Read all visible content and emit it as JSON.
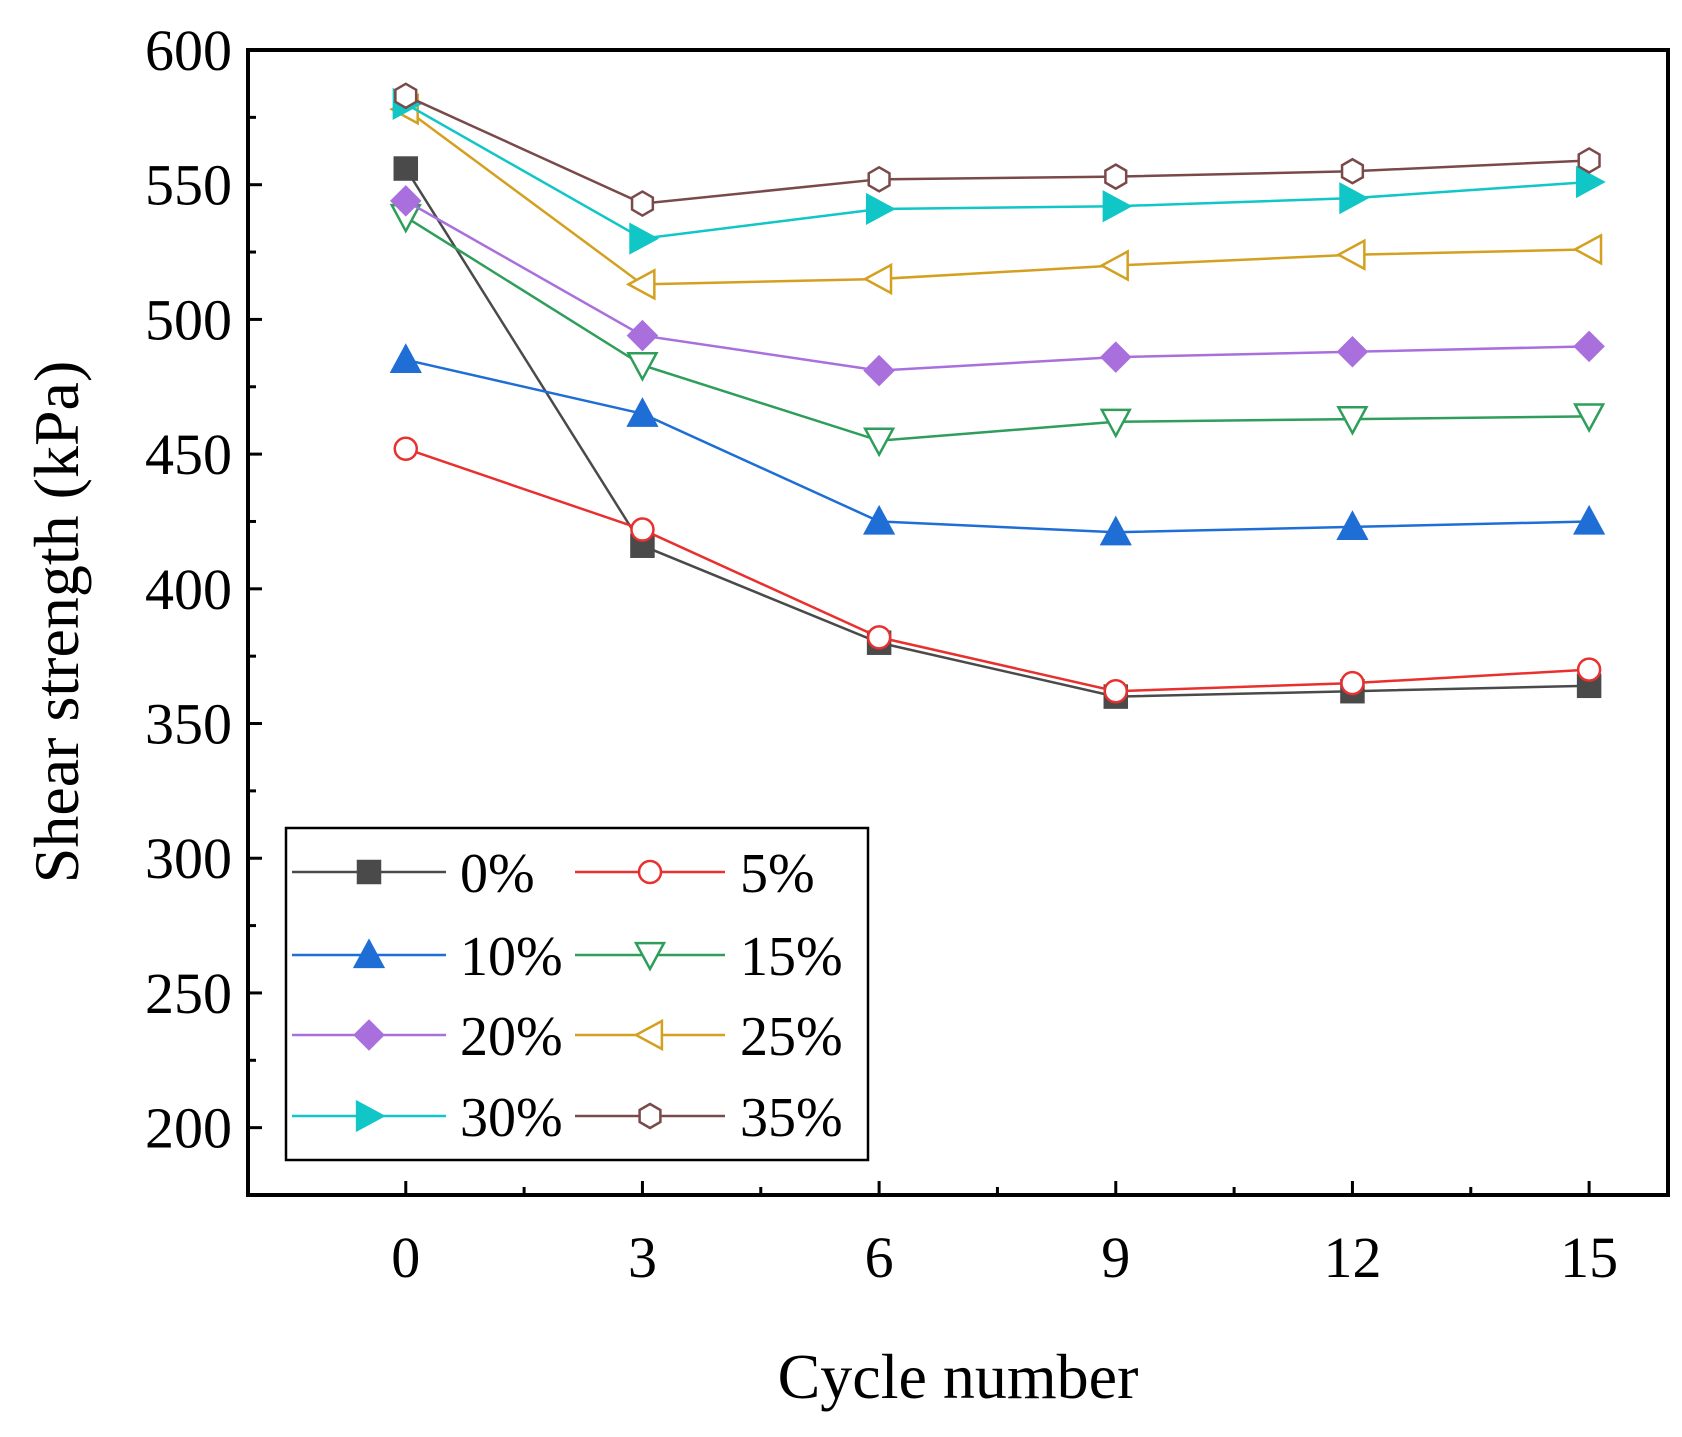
{
  "chart_data": {
    "type": "line",
    "title": "",
    "xlabel": "Cycle number",
    "ylabel": "Shear strength (kPa)",
    "x": [
      0,
      3,
      6,
      9,
      12,
      15
    ],
    "xticks": [
      "0",
      "3",
      "6",
      "9",
      "12",
      "15"
    ],
    "xlim": [
      -2,
      16
    ],
    "ylim": [
      175,
      600
    ],
    "yticks": [
      "200",
      "250",
      "300",
      "350",
      "400",
      "450",
      "500",
      "550",
      "600"
    ],
    "legend_position": "bottom-left",
    "series": [
      {
        "name": "0%",
        "color": "#4a4a4a",
        "marker": "square-filled",
        "values": [
          556,
          416,
          380,
          360,
          362,
          364
        ]
      },
      {
        "name": "5%",
        "color": "#e8302e",
        "marker": "circle-open",
        "values": [
          452,
          422,
          382,
          362,
          365,
          370
        ]
      },
      {
        "name": "10%",
        "color": "#1e6ed6",
        "marker": "triangle-up-filled",
        "values": [
          485,
          465,
          425,
          421,
          423,
          425
        ]
      },
      {
        "name": "15%",
        "color": "#2e9e5a",
        "marker": "triangle-down-open",
        "values": [
          538,
          483,
          455,
          462,
          463,
          464
        ]
      },
      {
        "name": "20%",
        "color": "#a86fdd",
        "marker": "diamond-filled",
        "values": [
          544,
          494,
          481,
          486,
          488,
          490
        ]
      },
      {
        "name": "25%",
        "color": "#d4a020",
        "marker": "triangle-left-open",
        "values": [
          578,
          513,
          515,
          520,
          524,
          526
        ]
      },
      {
        "name": "30%",
        "color": "#10c6c6",
        "marker": "triangle-right-filled",
        "values": [
          580,
          530,
          541,
          542,
          545,
          551
        ]
      },
      {
        "name": "35%",
        "color": "#7a4a4a",
        "marker": "hexagon-open",
        "values": [
          583,
          543,
          552,
          553,
          555,
          559
        ]
      }
    ]
  }
}
